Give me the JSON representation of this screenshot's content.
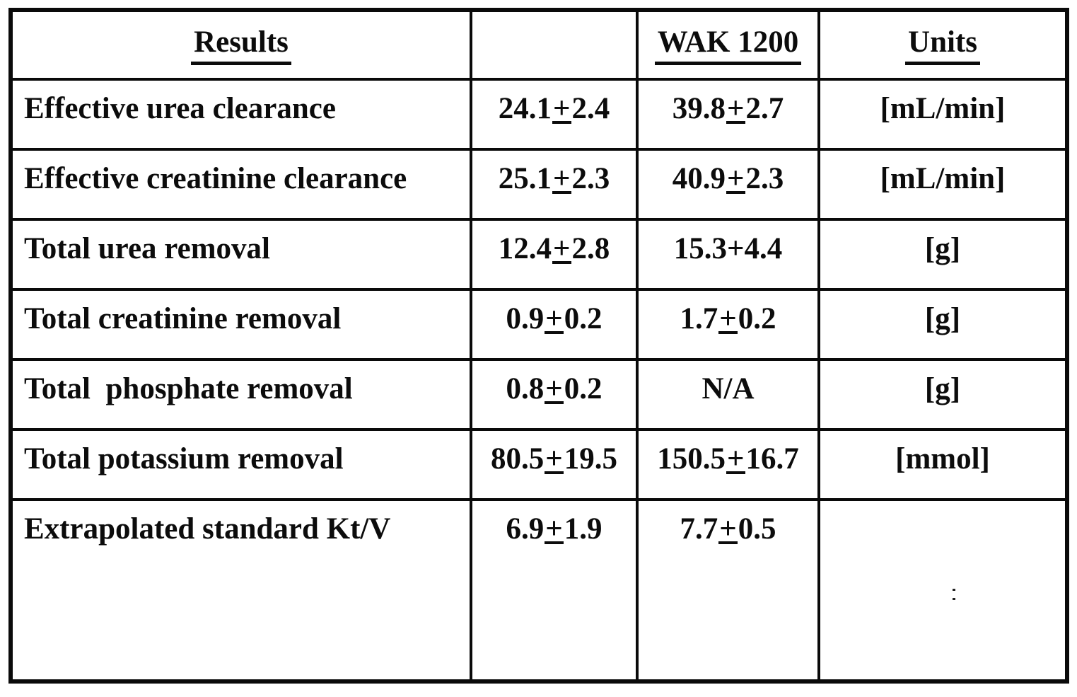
{
  "table": {
    "headers": {
      "results": "Results",
      "col2": "",
      "wak": "WAK 1200",
      "units": "Units"
    },
    "rows": [
      {
        "label": "Effective urea clearance",
        "value": "24.1±2.4",
        "wak": "39.8±2.7",
        "units": "[mL/min]"
      },
      {
        "label": "Effective creatinine clearance",
        "value": "25.1±2.3",
        "wak": "40.9±2.3",
        "units": "[mL/min]"
      },
      {
        "label": "Total urea removal",
        "value": "12.4±2.8",
        "wak": "15.3+4.4",
        "units": "[g]"
      },
      {
        "label": "Total creatinine removal",
        "value": "0.9±0.2",
        "wak": "1.7±0.2",
        "units": "[g]"
      },
      {
        "label": "Total  phosphate removal",
        "value": "0.8±0.2",
        "wak": "N/A",
        "units": "[g]"
      },
      {
        "label": "Total potassium removal",
        "value": "80.5±19.5",
        "wak": "150.5±16.7",
        "units": "[mmol]"
      },
      {
        "label": "Extrapolated standard Kt/V",
        "value": "6.9±1.9",
        "wak": "7.7±0.5",
        "units": ""
      }
    ]
  }
}
